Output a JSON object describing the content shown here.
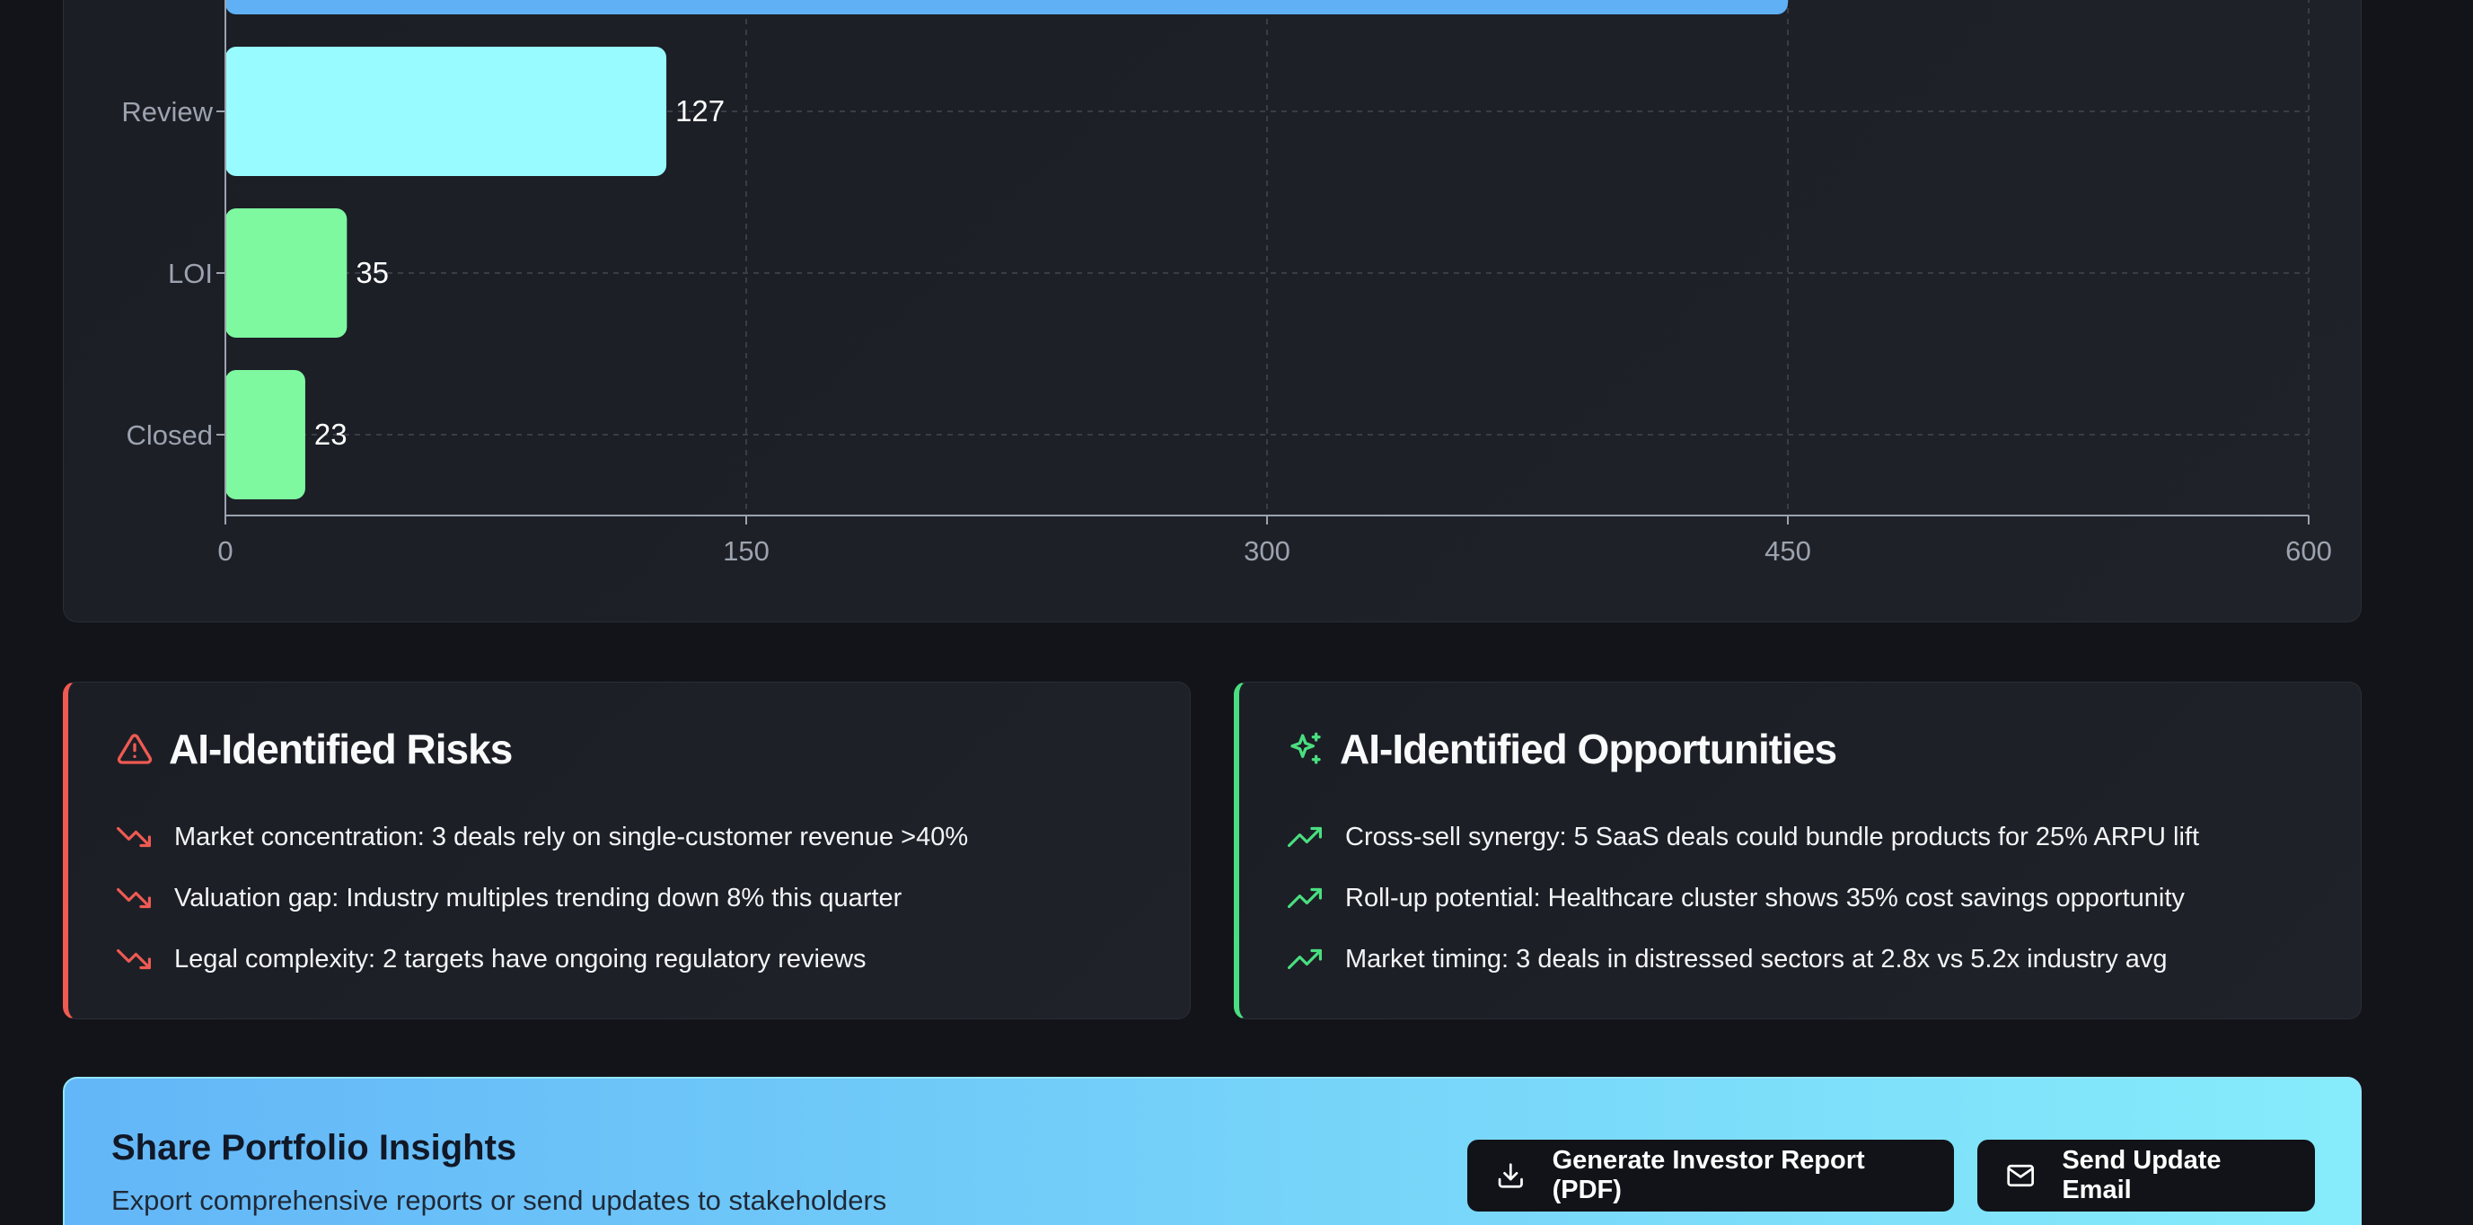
{
  "chart_data": {
    "type": "bar",
    "orientation": "horizontal",
    "categories": [
      "Review",
      "LOI",
      "Closed"
    ],
    "values": [
      127,
      35,
      23
    ],
    "partial_top_bar_value": 450,
    "value_labels": [
      "127",
      "35",
      "23"
    ],
    "xlim": [
      0,
      600
    ],
    "xticks": [
      "0",
      "150",
      "300",
      "450",
      "600"
    ],
    "grid": true,
    "colors": {
      "top": "#60b0f6",
      "Review": "#98fbff",
      "LOI": "#7ef9a0",
      "Closed": "#7ef9a0"
    }
  },
  "risks": {
    "title": "AI-Identified Risks",
    "icon": "alert-triangle-icon",
    "accent": "#ef5a52",
    "items": [
      {
        "text": "Market concentration: 3 deals rely on single-customer revenue >40%",
        "icon": "trending-down-icon"
      },
      {
        "text": "Valuation gap: Industry multiples trending down 8% this quarter",
        "icon": "trending-down-icon"
      },
      {
        "text": "Legal complexity: 2 targets have ongoing regulatory reviews",
        "icon": "trending-down-icon"
      }
    ]
  },
  "opportunities": {
    "title": "AI-Identified Opportunities",
    "icon": "sparkles-icon",
    "accent": "#4ade80",
    "items": [
      {
        "text": "Cross-sell synergy: 5 SaaS deals could bundle products for 25% ARPU lift",
        "icon": "trending-up-icon"
      },
      {
        "text": "Roll-up potential: Healthcare cluster shows 35% cost savings opportunity",
        "icon": "trending-up-icon"
      },
      {
        "text": "Market timing: 3 deals in distressed sectors at 2.8x vs 5.2x industry avg",
        "icon": "trending-up-icon"
      }
    ]
  },
  "share": {
    "title": "Share Portfolio Insights",
    "subtitle": "Export comprehensive reports or send updates to stakeholders",
    "report_button": "Generate Investor Report (PDF)",
    "email_button": "Send Update Email"
  }
}
